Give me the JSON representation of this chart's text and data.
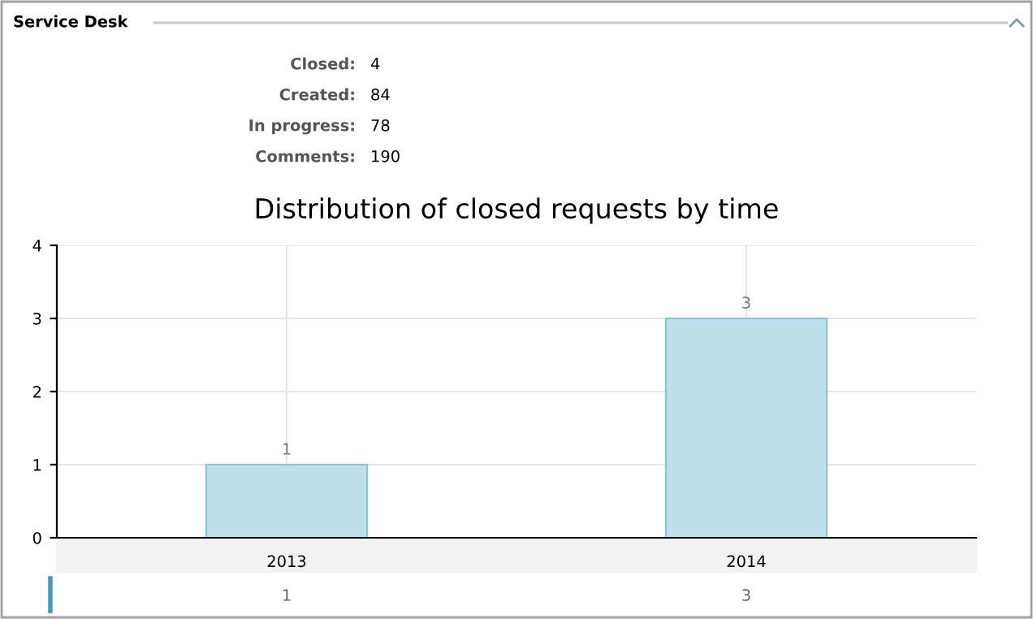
{
  "chart_data": {
    "type": "bar",
    "title": "Distribution of closed requests by time",
    "subtitle": "Service Desk",
    "annotations": [
      "Closed: 4",
      "Created: 84",
      "In progress: 78",
      "Comments: 190",
      "1",
      "3"
    ],
    "categories": [
      "2013",
      "2014"
    ],
    "values": [
      1,
      3
    ],
    "data_labels": true,
    "color": "#bfdfeb",
    "ylim": [
      0,
      4
    ],
    "yticks": [
      0,
      1,
      2,
      3,
      4
    ],
    "grid": true
  }
}
